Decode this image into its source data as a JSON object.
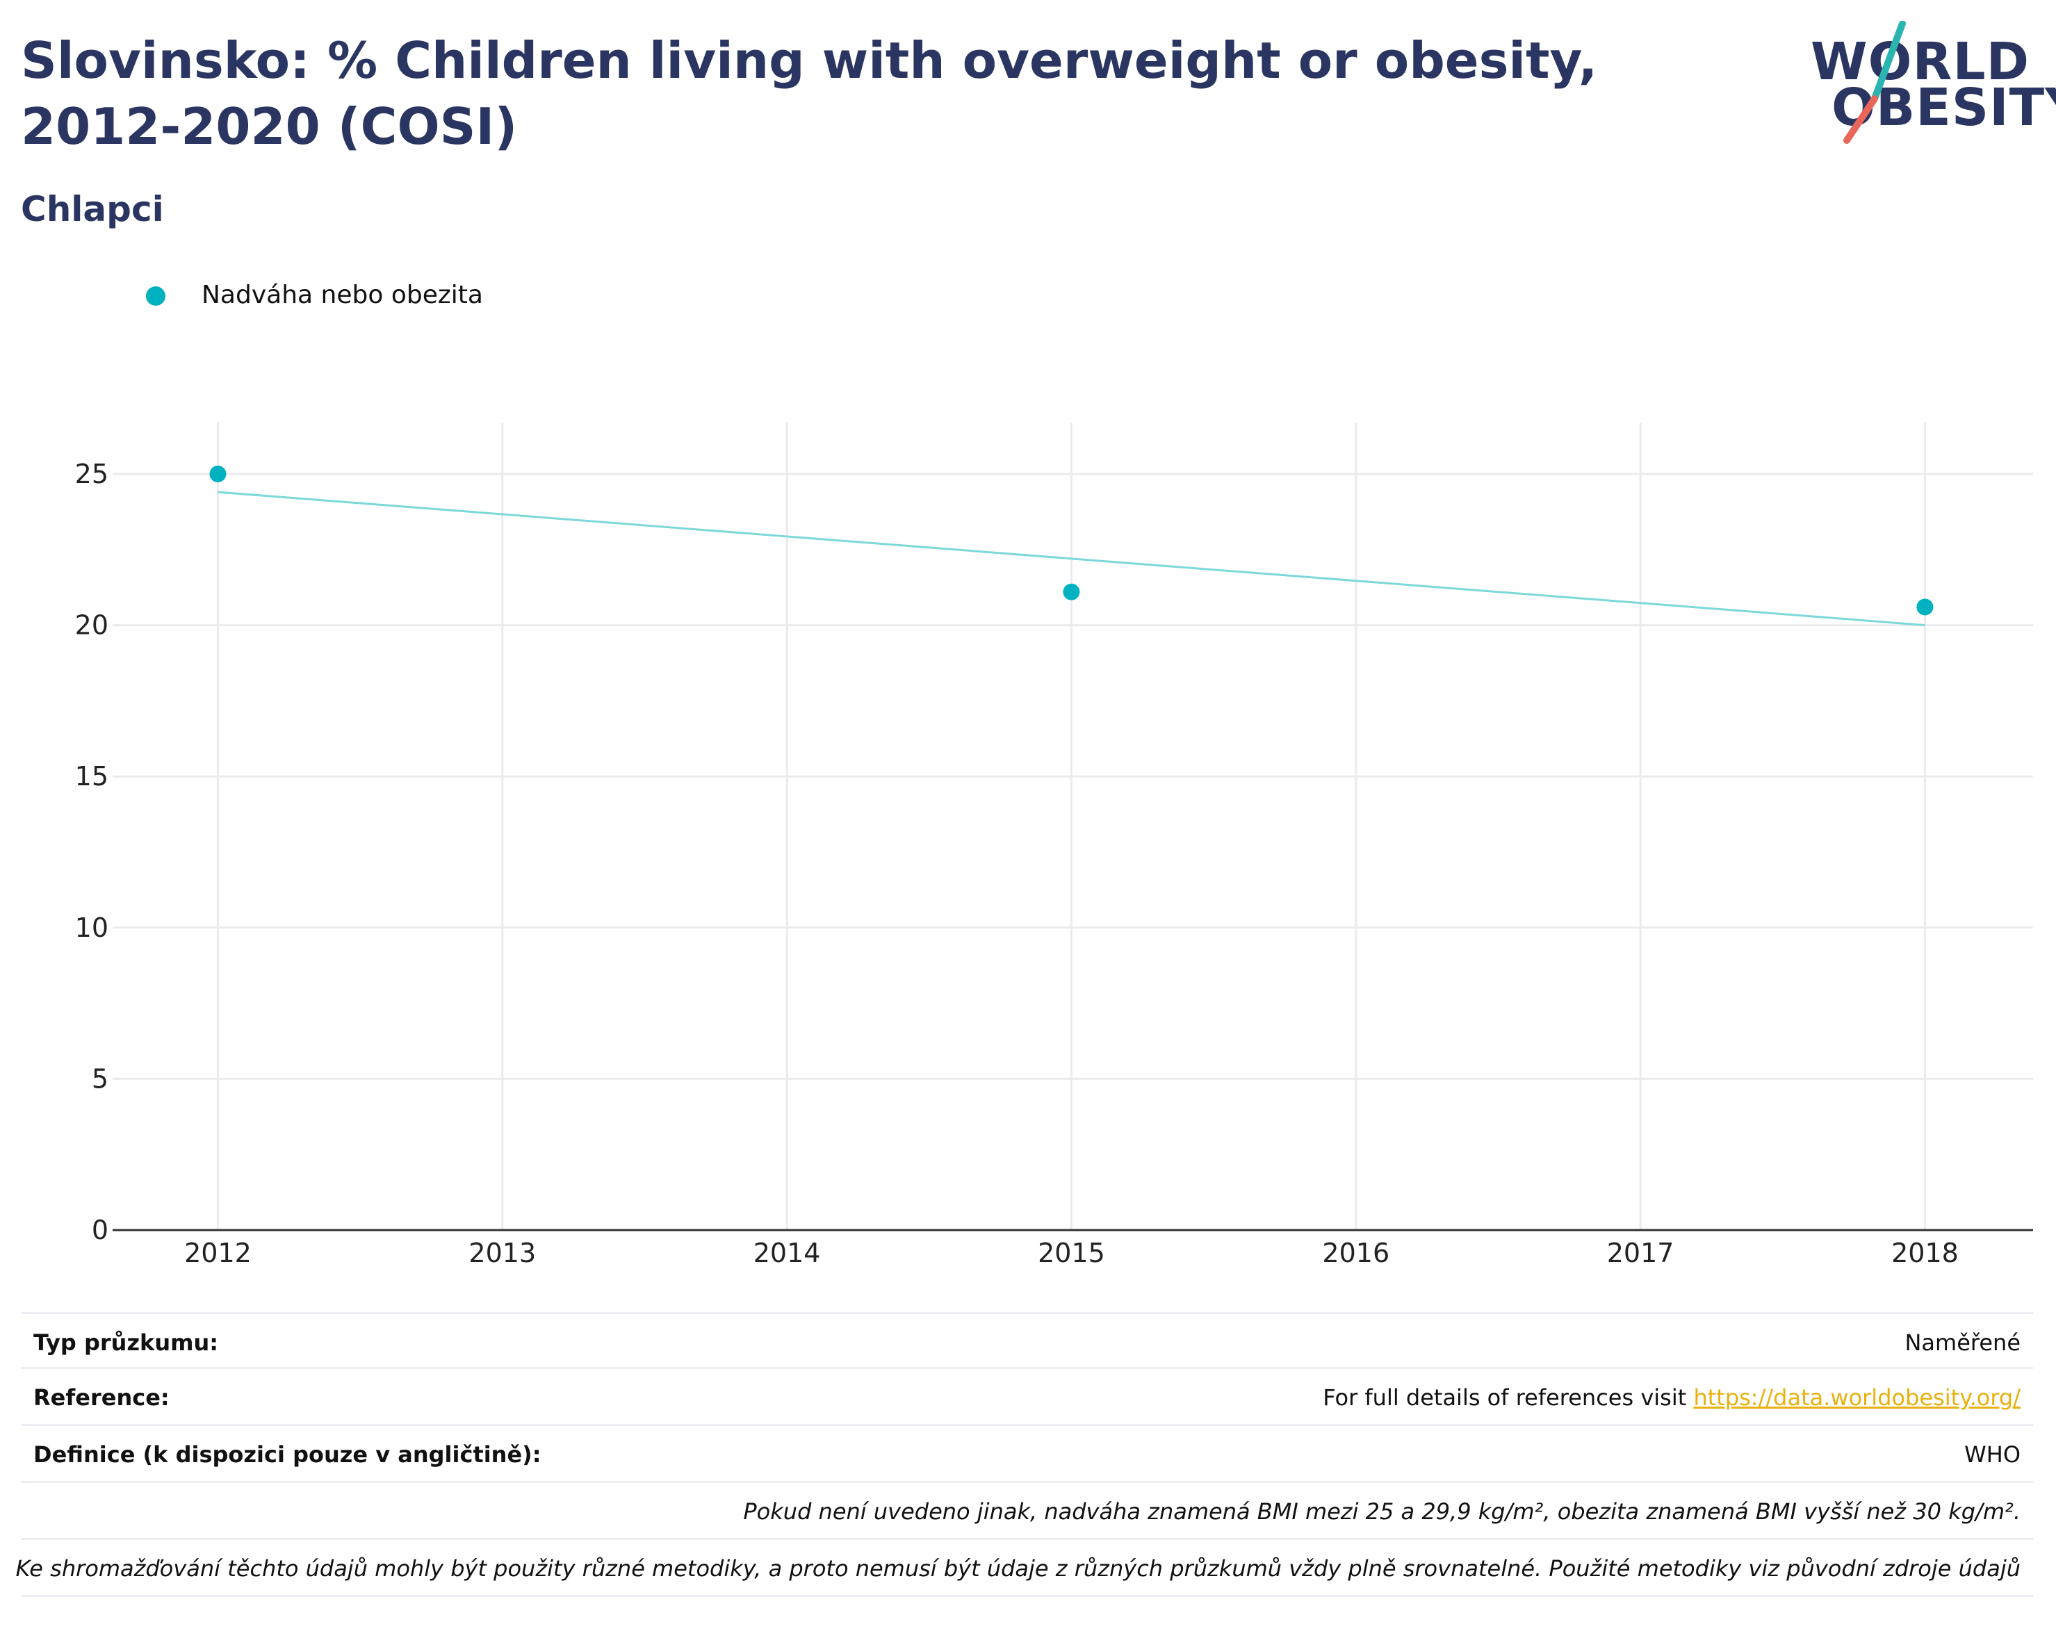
{
  "title": "Slovinsko: % Children living with overweight or obesity, 2012-2020 (COSI)",
  "subtitle": "Chlapci",
  "logo": {
    "line1": "WORLD",
    "line2": "OBESITY",
    "colors": {
      "text": "#2b3562",
      "slash_top": "#2bb5b0",
      "slash_bottom": "#e8675a"
    }
  },
  "colors": {
    "series": "#00b2c0",
    "trend": "#7dd8d8",
    "grid": "#ebebef",
    "axis": "#333333",
    "link": "#e8b10e"
  },
  "chart_data": {
    "type": "scatter",
    "legend_position": "top-left",
    "grid": true,
    "x_ticks": [
      "2012",
      "2013",
      "2014",
      "2015",
      "2016",
      "2017",
      "2018"
    ],
    "y_ticks": [
      "0",
      "5",
      "10",
      "15",
      "20",
      "25"
    ],
    "xlim": [
      2011.63,
      2018.38
    ],
    "ylim": [
      0,
      26.7
    ],
    "series": [
      {
        "name": "Nadváha nebo obezita",
        "x": [
          2012,
          2015,
          2018
        ],
        "y": [
          25.0,
          21.1,
          20.6
        ]
      }
    ],
    "trendline": {
      "x": [
        2012,
        2018
      ],
      "y": [
        24.4,
        20.0
      ]
    }
  },
  "info": {
    "survey_type_label": "Typ průzkumu:",
    "survey_type_value": "Naměřené",
    "reference_label": "Reference:",
    "reference_text": "For full details of references visit ",
    "reference_link": "https://data.worldobesity.org/",
    "definition_label": "Definice (k dispozici pouze v angličtině):",
    "definition_value": "WHO",
    "note1": "Pokud není uvedeno jinak, nadváha znamená BMI mezi 25 a 29,9 kg/m², obezita znamená BMI vyšší než 30 kg/m².",
    "note2": "Ke shromažďování těchto údajů mohly být použity různé metodiky, a proto nemusí být údaje z různých průzkumů vždy plně srovnatelné. Použité metodiky viz původní zdroje údajů"
  }
}
